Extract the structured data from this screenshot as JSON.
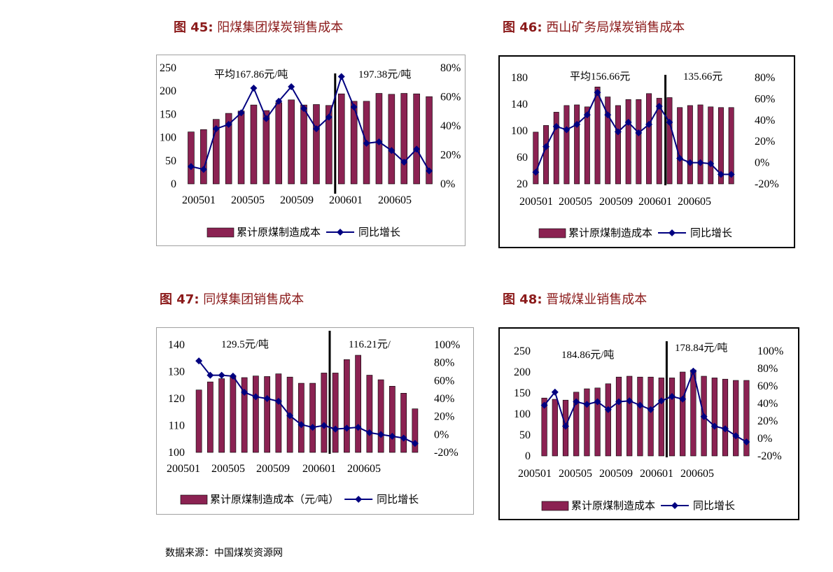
{
  "colors": {
    "bar": "#8b2252",
    "bar_stroke": "#000000",
    "line": "#000080",
    "title": "#8b1a1a"
  },
  "source": "数据来源：中国煤炭资源网",
  "figures": [
    {
      "title_num": "图 45:",
      "title_text": "阳煤集团煤炭销售成本",
      "chart_data": {
        "type": "bar+line",
        "categories": [
          "200501",
          "200502",
          "200503",
          "200504",
          "200505",
          "200506",
          "200507",
          "200508",
          "200509",
          "200510",
          "200511",
          "200512",
          "200601",
          "200602",
          "200603",
          "200604",
          "200605",
          "200606",
          "200607",
          "200608"
        ],
        "x_tick_labels": [
          "200501",
          "200505",
          "200509",
          "200601",
          "200605"
        ],
        "series": [
          {
            "name": "累计原煤制造成本",
            "axis": "left",
            "kind": "bar",
            "values": [
              112,
              117,
              139,
              152,
              157,
              170,
              158,
              175,
              181,
              170,
              171,
              169,
              194,
              178,
              178,
              195,
              193,
              195,
              194,
              188
            ]
          },
          {
            "name": "同比增长",
            "axis": "right",
            "kind": "line",
            "values": [
              12,
              10,
              38,
              41,
              49,
              66,
              45,
              57,
              67,
              52,
              38,
              46,
              74,
              53,
              28,
              29,
              23,
              15,
              24,
              9
            ]
          }
        ],
        "y_left": {
          "min": 0,
          "max": 250,
          "ticks": [
            0,
            50,
            100,
            150,
            200,
            250
          ]
        },
        "y_right": {
          "min": 0,
          "max": 80,
          "ticks": [
            0,
            20,
            40,
            60,
            80
          ],
          "suffix": "%"
        },
        "divider_after_index": 11,
        "annotations": [
          "平均167.86元/吨",
          "197.38元/吨"
        ]
      }
    },
    {
      "title_num": "图 46:",
      "title_text": "西山矿务局煤炭销售成本",
      "chart_data": {
        "type": "bar+line",
        "categories": [
          "200501",
          "200502",
          "200503",
          "200504",
          "200505",
          "200506",
          "200507",
          "200508",
          "200509",
          "200510",
          "200511",
          "200512",
          "200601",
          "200602",
          "200603",
          "200604",
          "200605",
          "200606",
          "200607",
          "200608"
        ],
        "x_tick_labels": [
          "200501",
          "200505",
          "200509",
          "200601",
          "200605"
        ],
        "series": [
          {
            "name": "累计原煤制造成本",
            "axis": "left",
            "kind": "bar",
            "values": [
              98,
              108,
              128,
              138,
              139,
              136,
              166,
              151,
              138,
              147,
              147,
              156,
              149,
              150,
              135,
              138,
              139,
              136,
              135,
              135
            ]
          },
          {
            "name": "同比增长",
            "axis": "right",
            "kind": "line",
            "values": [
              -9,
              15,
              34,
              31,
              36,
              45,
              66,
              45,
              29,
              38,
              28,
              36,
              53,
              38,
              4,
              0,
              0,
              -1,
              -11,
              -11
            ]
          }
        ],
        "y_left": {
          "min": 20,
          "max": 180,
          "ticks": [
            20,
            60,
            100,
            140,
            180
          ]
        },
        "y_right": {
          "min": -20,
          "max": 80,
          "ticks": [
            -20,
            0,
            20,
            40,
            60,
            80
          ],
          "suffix": "%"
        },
        "divider_after_index": 12,
        "annotations": [
          "平均156.66元",
          "135.66元"
        ]
      }
    },
    {
      "title_num": "图 47:",
      "title_text": "同煤集团销售成本",
      "chart_data": {
        "type": "bar+line",
        "categories": [
          "200501",
          "200502",
          "200503",
          "200504",
          "200505",
          "200506",
          "200507",
          "200508",
          "200509",
          "200510",
          "200511",
          "200512",
          "200601",
          "200602",
          "200603",
          "200604",
          "200605",
          "200606",
          "200607",
          "200608"
        ],
        "x_tick_labels": [
          "200501",
          "200505",
          "200509",
          "200601",
          "200605"
        ],
        "series": [
          {
            "name": "累计原煤制造成本（元/吨）",
            "axis": "left",
            "kind": "bar",
            "values": [
              123.2,
              126.2,
              127.4,
              128.1,
              127.8,
              128.4,
              128.2,
              129.2,
              128.0,
              125.7,
              125.7,
              129.5,
              129.5,
              134.5,
              136.1,
              128.7,
              127.0,
              124.6,
              122.0,
              116.2
            ]
          },
          {
            "name": "同比增长",
            "axis": "right",
            "kind": "line",
            "values": [
              82,
              66,
              66,
              65,
              47,
              42,
              40,
              37,
              21,
              11,
              8,
              10,
              6,
              7,
              8,
              2,
              0,
              -2,
              -4,
              -10
            ]
          }
        ],
        "y_left": {
          "min": 100,
          "max": 140,
          "ticks": [
            100,
            110,
            120,
            130,
            140
          ]
        },
        "y_right": {
          "min": -20,
          "max": 100,
          "ticks": [
            -20,
            0,
            20,
            40,
            60,
            80,
            100
          ],
          "suffix": "%"
        },
        "divider_after_index": 11,
        "annotations": [
          "129.5元/吨",
          "116.21元/"
        ]
      }
    },
    {
      "title_num": "图 48:",
      "title_text": "晋城煤业销售成本",
      "chart_data": {
        "type": "bar+line",
        "categories": [
          "200501",
          "200502",
          "200503",
          "200504",
          "200505",
          "200506",
          "200507",
          "200508",
          "200509",
          "200510",
          "200511",
          "200512",
          "200601",
          "200602",
          "200603",
          "200604",
          "200605",
          "200606",
          "200607",
          "200608"
        ],
        "x_tick_labels": [
          "200501",
          "200505",
          "200509",
          "200601",
          "200605"
        ],
        "series": [
          {
            "name": "累计原煤制造成本",
            "axis": "left",
            "kind": "bar",
            "values": [
              138,
              135,
              133,
              152,
              160,
              162,
              172,
              188,
              190,
              188,
              188,
              186,
              186,
              200,
              205,
              190,
              186,
              183,
              180,
              180
            ]
          },
          {
            "name": "同比增长",
            "axis": "right",
            "kind": "line",
            "values": [
              38,
              53,
              14,
              42,
              39,
              42,
              33,
              42,
              43,
              38,
              33,
              43,
              48,
              45,
              77,
              25,
              14,
              11,
              3,
              -4
            ]
          }
        ],
        "y_left": {
          "min": 0,
          "max": 250,
          "ticks": [
            0,
            50,
            100,
            150,
            200,
            250
          ]
        },
        "y_right": {
          "min": -20,
          "max": 100,
          "ticks": [
            -20,
            0,
            20,
            40,
            60,
            80,
            100
          ],
          "suffix": "%"
        },
        "divider_after_index": 11,
        "annotations": [
          "184.86元/吨",
          "178.84元/吨"
        ]
      }
    }
  ]
}
